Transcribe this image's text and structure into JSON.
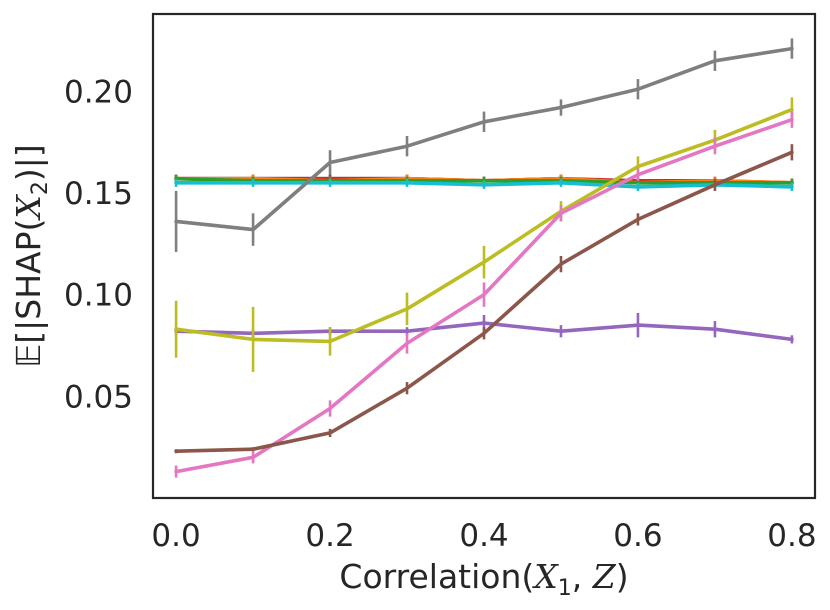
{
  "chart_data": {
    "type": "line",
    "title": "",
    "xlabel": "Correlation(X1, Z)",
    "ylabel": "E[|SHAP(X2)|]",
    "xlabel_parts": {
      "pre": "Correlation(",
      "var1": "X",
      "sub1": "1",
      "sep": ", ",
      "var2": "Z",
      "post": ")"
    },
    "ylabel_parts": {
      "pre": "𝔼[|SHAP(",
      "var": "X",
      "sub": "2",
      "post": ")|]"
    },
    "xlim": [
      -0.03,
      0.83
    ],
    "ylim": [
      0.0,
      0.238
    ],
    "xticks": [
      0.0,
      0.2,
      0.4,
      0.6,
      0.8
    ],
    "xtick_labels": [
      "0.0",
      "0.2",
      "0.4",
      "0.6",
      "0.8"
    ],
    "yticks": [
      0.05,
      0.1,
      0.15,
      0.2
    ],
    "ytick_labels": [
      "0.05",
      "0.10",
      "0.15",
      "0.20"
    ],
    "grid": false,
    "legend": "none",
    "x": [
      0.0,
      0.1,
      0.2,
      0.3,
      0.4,
      0.5,
      0.6,
      0.7,
      0.8
    ],
    "series": [
      {
        "name": "blue",
        "color": "#1f77b4",
        "values": [
          0.157,
          0.157,
          0.157,
          0.157,
          0.156,
          0.157,
          0.155,
          0.155,
          0.155
        ],
        "errors": [
          0.002,
          0.002,
          0.002,
          0.002,
          0.002,
          0.002,
          0.002,
          0.002,
          0.002
        ]
      },
      {
        "name": "red",
        "color": "#d62728",
        "values": [
          0.157,
          0.157,
          0.157,
          0.157,
          0.156,
          0.157,
          0.156,
          0.156,
          0.155
        ],
        "errors": [
          0.002,
          0.002,
          0.002,
          0.002,
          0.002,
          0.002,
          0.002,
          0.002,
          0.002
        ]
      },
      {
        "name": "orange",
        "color": "#ff7f0e",
        "values": [
          0.157,
          0.157,
          0.156,
          0.157,
          0.156,
          0.157,
          0.155,
          0.156,
          0.155
        ],
        "errors": [
          0.002,
          0.002,
          0.002,
          0.002,
          0.002,
          0.002,
          0.002,
          0.002,
          0.002
        ]
      },
      {
        "name": "green",
        "color": "#2ca02c",
        "values": [
          0.157,
          0.156,
          0.156,
          0.156,
          0.156,
          0.156,
          0.155,
          0.155,
          0.155
        ],
        "errors": [
          0.002,
          0.002,
          0.002,
          0.002,
          0.002,
          0.002,
          0.002,
          0.002,
          0.002
        ]
      },
      {
        "name": "cyan",
        "color": "#17becf",
        "values": [
          0.155,
          0.155,
          0.155,
          0.155,
          0.154,
          0.155,
          0.153,
          0.154,
          0.153
        ],
        "errors": [
          0.002,
          0.002,
          0.002,
          0.002,
          0.002,
          0.002,
          0.002,
          0.002,
          0.002
        ]
      },
      {
        "name": "gray",
        "color": "#7f7f7f",
        "values": [
          0.136,
          0.132,
          0.165,
          0.173,
          0.185,
          0.192,
          0.201,
          0.215,
          0.221
        ],
        "errors": [
          0.015,
          0.008,
          0.006,
          0.005,
          0.005,
          0.004,
          0.005,
          0.005,
          0.005
        ]
      },
      {
        "name": "purple",
        "color": "#9467bd",
        "values": [
          0.082,
          0.081,
          0.082,
          0.082,
          0.086,
          0.082,
          0.085,
          0.083,
          0.078
        ],
        "errors": [
          0.002,
          0.002,
          0.002,
          0.002,
          0.004,
          0.003,
          0.006,
          0.004,
          0.002
        ]
      },
      {
        "name": "olive",
        "color": "#bcbd22",
        "values": [
          0.083,
          0.078,
          0.077,
          0.093,
          0.116,
          0.141,
          0.163,
          0.176,
          0.191
        ],
        "errors": [
          0.014,
          0.016,
          0.007,
          0.008,
          0.008,
          0.005,
          0.005,
          0.005,
          0.006
        ]
      },
      {
        "name": "pink",
        "color": "#e377c2",
        "values": [
          0.013,
          0.02,
          0.044,
          0.076,
          0.1,
          0.14,
          0.159,
          0.173,
          0.186
        ],
        "errors": [
          0.003,
          0.003,
          0.004,
          0.005,
          0.006,
          0.004,
          0.003,
          0.004,
          0.004
        ]
      },
      {
        "name": "brown",
        "color": "#8c564b",
        "values": [
          0.023,
          0.024,
          0.032,
          0.054,
          0.081,
          0.115,
          0.137,
          0.154,
          0.17
        ],
        "errors": [
          0.001,
          0.001,
          0.002,
          0.003,
          0.003,
          0.004,
          0.003,
          0.003,
          0.004
        ]
      }
    ]
  }
}
